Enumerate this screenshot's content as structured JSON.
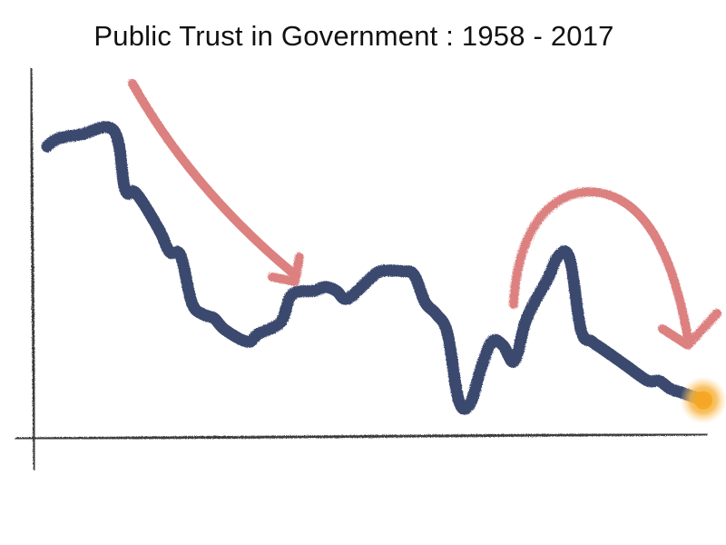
{
  "chart_data": {
    "type": "line",
    "title": "Public Trust in Government : 1958 - 2017",
    "xlabel": "",
    "ylabel": "",
    "x_range": [
      1958,
      2017
    ],
    "grid": false,
    "legend": "none",
    "series": [
      {
        "color": "#3a4a6e",
        "x": [
          1958,
          1959,
          1961,
          1964,
          1965,
          1966,
          1968,
          1969,
          1970,
          1971,
          1972,
          1973,
          1974,
          1976,
          1977,
          1979,
          1980,
          1982,
          1983,
          1984,
          1985,
          1987,
          1988,
          1990,
          1991,
          1992,
          1993,
          1994,
          1995,
          1996,
          1997,
          1998,
          1999,
          2000,
          2001,
          2002,
          2003,
          2004,
          2005,
          2006,
          2007,
          2008,
          2009,
          2010,
          2012,
          2013,
          2014,
          2015,
          2016,
          2017
        ],
        "values": [
          73,
          75,
          76,
          77,
          62,
          61,
          52,
          46,
          45,
          33,
          30,
          29,
          26,
          23,
          25,
          28,
          35,
          36,
          37,
          36,
          34,
          39,
          41,
          41,
          40,
          33,
          30,
          25,
          8,
          7,
          16,
          23,
          22,
          18,
          28,
          34,
          39,
          45,
          44,
          26,
          23,
          21,
          19,
          17,
          13,
          13,
          11,
          10,
          9,
          8
        ]
      }
    ],
    "highlight_point": {
      "x": 2017,
      "y": 8,
      "color": "#f5a623"
    },
    "annotations": [
      {
        "kind": "down-arrow",
        "from_x": 1963,
        "to_x": 1972,
        "color": "#d66a6a"
      },
      {
        "kind": "rise-and-fall-arrow",
        "from_x": 2001,
        "peak_x": 2006,
        "to_x": 2015,
        "color": "#d66a6a"
      }
    ]
  }
}
